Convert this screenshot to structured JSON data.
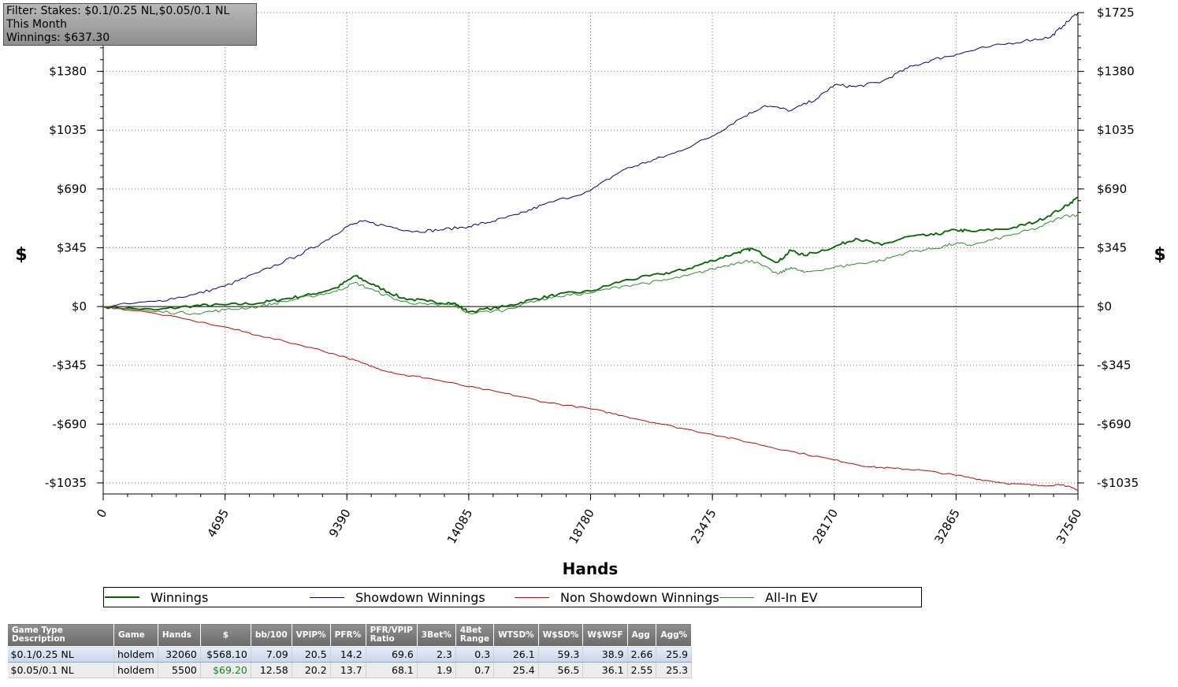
{
  "filter": {
    "line1": "Filter: Stakes: $0.1/0.25 NL,$0.05/0.1 NL",
    "line2": "This Month",
    "line3": "Winnings: $637.30"
  },
  "chart_data": {
    "type": "line",
    "xlabel": "Hands",
    "ylabel": "$",
    "xlim": [
      0,
      37560
    ],
    "ylim": [
      -1100,
      1725
    ],
    "x_ticks": [
      0,
      4695,
      9390,
      14085,
      18780,
      23475,
      28170,
      32865,
      37560
    ],
    "y_ticks": [
      -1035,
      -690,
      -345,
      0,
      345,
      690,
      1035,
      1380,
      1725
    ],
    "y_tick_labels": [
      "-$1035",
      "-$690",
      "-$345",
      "$0",
      "$345",
      "$690",
      "$1035",
      "$1380",
      "$1725"
    ],
    "grid": true,
    "legend_position": "bottom",
    "series": [
      {
        "name": "Winnings",
        "color": "#006400",
        "width": 1.8,
        "x": [
          0,
          2000,
          3500,
          4695,
          6000,
          7000,
          8000,
          9000,
          9700,
          10500,
          11500,
          12500,
          13500,
          14085,
          15500,
          16500,
          17500,
          18780,
          20000,
          21500,
          22500,
          23475,
          24500,
          25000,
          26000,
          26500,
          27000,
          28170,
          29000,
          30000,
          31000,
          32000,
          32865,
          33500,
          35000,
          36000,
          37000,
          37560
        ],
        "y": [
          0,
          -20,
          5,
          10,
          20,
          45,
          70,
          110,
          180,
          120,
          50,
          30,
          20,
          -30,
          0,
          40,
          70,
          90,
          150,
          190,
          220,
          270,
          320,
          340,
          260,
          330,
          300,
          350,
          400,
          360,
          410,
          420,
          450,
          440,
          460,
          500,
          580,
          640
        ]
      },
      {
        "name": "Showdown Winnings",
        "color": "#00008b",
        "width": 1,
        "x": [
          0,
          2000,
          3500,
          4695,
          6000,
          7500,
          8500,
          9390,
          10000,
          11000,
          12000,
          13000,
          14085,
          15000,
          16000,
          17000,
          18780,
          20000,
          21000,
          22000,
          23475,
          24500,
          25500,
          26500,
          27500,
          28170,
          29000,
          30000,
          31000,
          32000,
          32865,
          34000,
          35500,
          36500,
          37000,
          37560
        ],
        "y": [
          0,
          30,
          70,
          120,
          200,
          300,
          380,
          470,
          500,
          470,
          440,
          450,
          470,
          500,
          540,
          600,
          680,
          800,
          850,
          900,
          1000,
          1100,
          1180,
          1150,
          1220,
          1300,
          1290,
          1320,
          1400,
          1450,
          1480,
          1520,
          1560,
          1580,
          1650,
          1725
        ]
      },
      {
        "name": "Non Showdown Winnings",
        "color": "#cc0000",
        "width": 1,
        "x": [
          0,
          2000,
          4695,
          6000,
          8000,
          9390,
          10500,
          11500,
          12500,
          14085,
          15500,
          17000,
          18780,
          20000,
          21500,
          23475,
          25000,
          26500,
          28170,
          29500,
          30500,
          31500,
          32865,
          34000,
          35000,
          36000,
          37000,
          37560
        ],
        "y": [
          0,
          -40,
          -120,
          -170,
          -240,
          -300,
          -360,
          -400,
          -420,
          -470,
          -510,
          -560,
          -600,
          -640,
          -690,
          -750,
          -800,
          -850,
          -900,
          -940,
          -950,
          -960,
          -990,
          -1020,
          -1040,
          -1050,
          -1045,
          -1080
        ]
      },
      {
        "name": "All-In EV",
        "color": "#2e8b2e",
        "width": 1,
        "x": [
          0,
          2000,
          3500,
          4695,
          6000,
          7000,
          8000,
          9000,
          9700,
          10500,
          11500,
          12500,
          13500,
          14085,
          15500,
          16500,
          17500,
          18780,
          20000,
          21500,
          22500,
          23475,
          24500,
          25000,
          26000,
          26500,
          27000,
          28170,
          29000,
          30000,
          31000,
          32000,
          32865,
          33500,
          35000,
          36000,
          37000,
          37560
        ],
        "y": [
          0,
          -30,
          -40,
          -20,
          0,
          30,
          60,
          90,
          140,
          90,
          30,
          10,
          10,
          -40,
          -20,
          30,
          60,
          80,
          120,
          150,
          180,
          220,
          260,
          270,
          190,
          230,
          200,
          230,
          250,
          270,
          320,
          340,
          370,
          360,
          420,
          460,
          530,
          540
        ]
      }
    ]
  },
  "stats_table": {
    "headers": [
      "Game Type Description",
      "Game",
      "Hands",
      "$",
      "bb/100",
      "VPIP%",
      "PFR%",
      "PFR/VPIP Ratio",
      "3Bet%",
      "4Bet Range",
      "WTSD%",
      "W$SD%",
      "W$WSF",
      "Agg",
      "Agg%"
    ],
    "rows": [
      [
        "$0.1/0.25 NL",
        "holdem",
        "32060",
        "$568.10",
        "7.09",
        "20.5",
        "14.2",
        "69.6",
        "2.3",
        "0.3",
        "26.1",
        "59.3",
        "38.9",
        "2.66",
        "25.9"
      ],
      [
        "$0.05/0.1 NL",
        "holdem",
        "5500",
        "$69.20",
        "12.58",
        "20.2",
        "13.7",
        "68.1",
        "1.9",
        "0.7",
        "25.4",
        "56.5",
        "36.1",
        "2.55",
        "25.3"
      ]
    ],
    "highlight_color": "#1a7f1a"
  }
}
